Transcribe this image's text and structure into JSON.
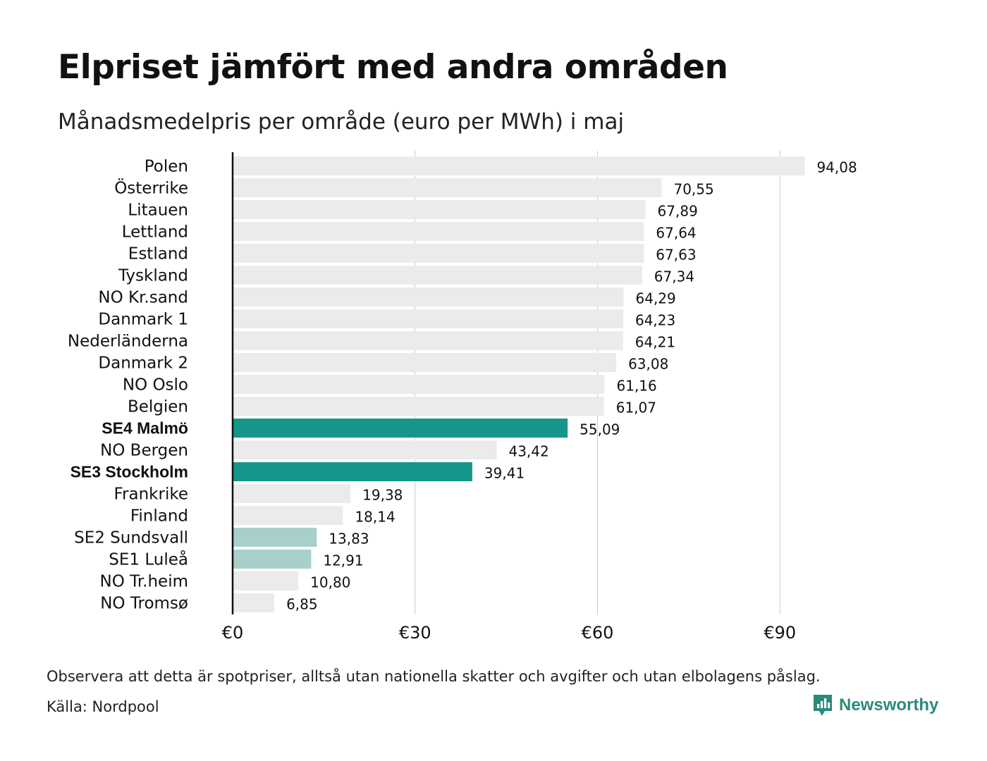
{
  "title": "Elpriset jämfört med andra områden",
  "subtitle": "Månadsmedelpris per område (euro per MWh) i maj",
  "footnote": "Observera att detta är spotpriser, alltså utan nationella skatter och avgifter och utan elbolagens påslag.",
  "source": "Källa: Nordpool",
  "brand": {
    "name": "Newsworthy",
    "icon": "bar-chart-speech-bubble-icon",
    "color": "#2a8a7c"
  },
  "colors": {
    "default": "#ebebeb",
    "highlight": "#15968a",
    "light": "#a7d0cb",
    "grid": "#c9ccd6",
    "axis": "#111111"
  },
  "chart_data": {
    "type": "bar",
    "orientation": "horizontal",
    "categories": [
      "Polen",
      "Österrike",
      "Litauen",
      "Lettland",
      "Estland",
      "Tyskland",
      "NO Kr.sand",
      "Danmark  1",
      "Nederländerna",
      "Danmark  2",
      "NO Oslo",
      "Belgien",
      "SE4 Malmö",
      "NO Bergen",
      "SE3 Stockholm",
      "Frankrike",
      "Finland",
      "SE2  Sundsvall",
      "SE1  Luleå",
      "NO Tr.heim",
      "NO Tromsø"
    ],
    "values": [
      94.08,
      70.55,
      67.89,
      67.64,
      67.63,
      67.34,
      64.29,
      64.23,
      64.21,
      63.08,
      61.16,
      61.07,
      55.09,
      43.42,
      39.41,
      19.38,
      18.14,
      13.83,
      12.91,
      10.8,
      6.85
    ],
    "value_labels": [
      "94,08",
      "70,55",
      "67,89",
      "67,64",
      "67,63",
      "67,34",
      "64,29",
      "64,23",
      "64,21",
      "63,08",
      "61,16",
      "61,07",
      "55,09",
      "43,42",
      "39,41",
      "19,38",
      "18,14",
      "13,83",
      "12,91",
      "10,80",
      "6,85"
    ],
    "highlight": [
      "default",
      "default",
      "default",
      "default",
      "default",
      "default",
      "default",
      "default",
      "default",
      "default",
      "default",
      "default",
      "highlight",
      "default",
      "highlight",
      "default",
      "default",
      "light",
      "light",
      "default",
      "default"
    ],
    "bold_labels": [
      "SE4 Malmö",
      "SE3 Stockholm"
    ],
    "xticks": [
      0,
      30,
      60,
      90
    ],
    "xtick_labels": [
      "€0",
      "€30",
      "€60",
      "€90"
    ],
    "xlim": [
      0,
      100
    ],
    "grid": true,
    "xlabel": "",
    "ylabel": ""
  }
}
